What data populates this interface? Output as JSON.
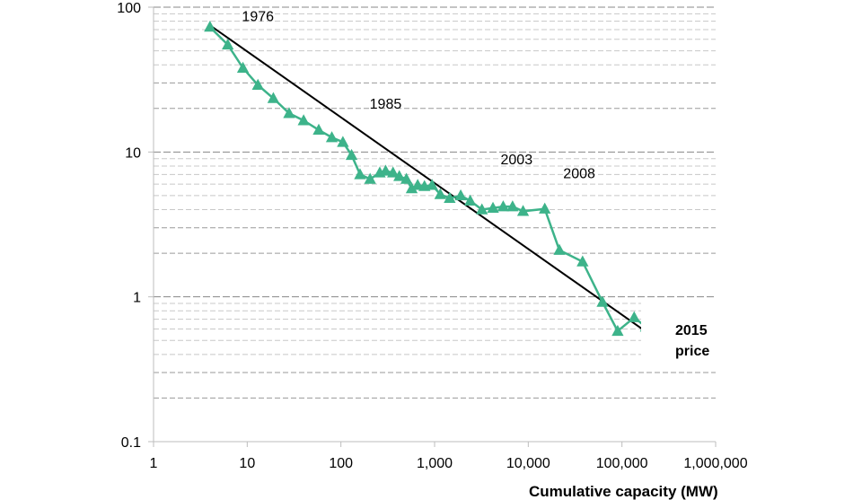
{
  "chart_data": {
    "type": "line",
    "title": "",
    "xlabel": "Cumulative capacity (MW)",
    "ylabel": "",
    "x_scale": "log",
    "y_scale": "log",
    "xlim": [
      1,
      1000000
    ],
    "ylim": [
      0.1,
      100
    ],
    "x_ticks": [
      1,
      10,
      100,
      1000,
      10000,
      100000,
      1000000
    ],
    "x_tick_labels": [
      "1",
      "10",
      "100",
      "1,000",
      "10,000",
      "100,000",
      "1,000,000"
    ],
    "y_ticks": [
      0.1,
      1,
      10,
      100
    ],
    "y_tick_labels": [
      "0.1",
      "1",
      "10",
      "100"
    ],
    "grid": "horizontal dashed",
    "colors": {
      "series": "#3db38a",
      "trend": "#000000",
      "highlight": "#6b3fa0"
    },
    "series": [
      {
        "x": [
          4.0,
          6.2,
          9.0,
          13,
          19,
          28,
          40,
          58,
          80,
          105,
          130,
          160,
          205,
          260,
          300,
          360,
          420,
          500,
          570,
          660,
          780,
          940,
          1150,
          1450,
          1900,
          2400,
          3200,
          4200,
          5400,
          6800,
          8800,
          15000,
          21500,
          38000,
          62000,
          90000,
          135000,
          180000
        ],
        "y": [
          73,
          55,
          38,
          29,
          23.5,
          18.5,
          16.5,
          14.2,
          12.6,
          11.7,
          9.5,
          7.0,
          6.5,
          7.2,
          7.4,
          7.2,
          6.8,
          6.5,
          5.6,
          5.9,
          5.8,
          5.9,
          5.1,
          4.8,
          5.0,
          4.6,
          4.0,
          4.1,
          4.2,
          4.2,
          3.9,
          4.05,
          2.1,
          1.75,
          0.92,
          0.58,
          0.72,
          0.62
        ]
      }
    ],
    "trend_line": {
      "x": [
        4.0,
        245000
      ],
      "y": [
        75,
        0.5
      ]
    },
    "highlight_point": {
      "x": 240000,
      "y": 0.6
    },
    "annotations": [
      {
        "text": "1976",
        "x": 13,
        "y": 80
      },
      {
        "text": "1985",
        "x": 300,
        "y": 20
      },
      {
        "text": "2003",
        "x": 7500,
        "y": 8.2
      },
      {
        "text": "2008",
        "x": 35000,
        "y": 6.6
      }
    ],
    "price_label": [
      "2015",
      "price"
    ]
  }
}
